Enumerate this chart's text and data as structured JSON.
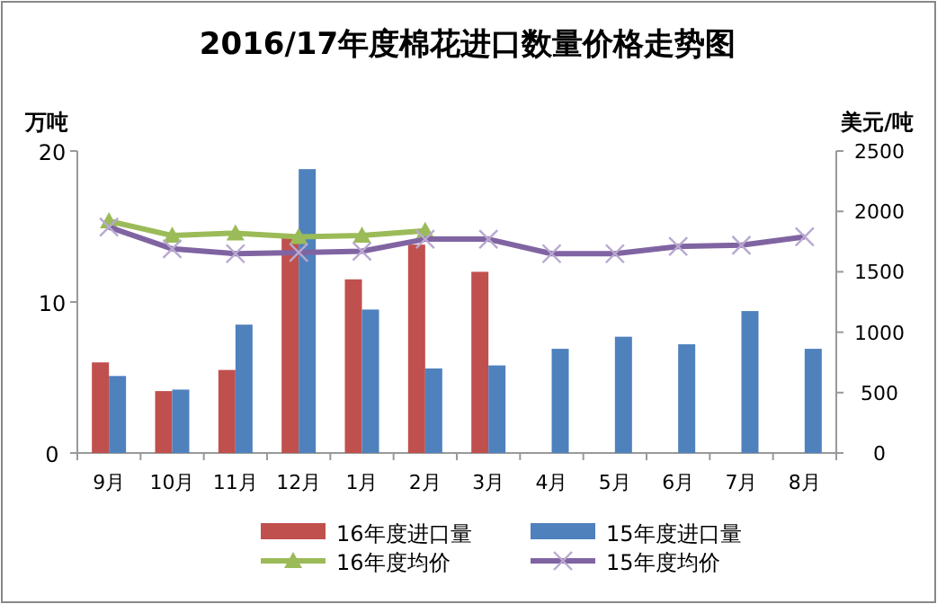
{
  "chart_data": {
    "type": "bar",
    "title": "2016/17年度棉花进口数量价格走势图",
    "ylabel": "万吨",
    "y2label": "美元/吨",
    "categories": [
      "9月",
      "10月",
      "11月",
      "12月",
      "1月",
      "2月",
      "3月",
      "4月",
      "5月",
      "6月",
      "7月",
      "8月"
    ],
    "ylim": [
      0,
      20
    ],
    "yticks": [
      0,
      10,
      20
    ],
    "y2lim": [
      0,
      2500
    ],
    "y2ticks": [
      0,
      500,
      1000,
      1500,
      2000,
      2500
    ],
    "legend": "bottom",
    "grid": false,
    "series": [
      {
        "name": "16年度进口量",
        "color": "#c0504d",
        "values": [
          6.0,
          4.1,
          5.5,
          14.3,
          11.5,
          13.8,
          12.0,
          null,
          null,
          null,
          null,
          null
        ]
      },
      {
        "name": "15年度进口量",
        "color": "#4f81bd",
        "values": [
          5.1,
          4.2,
          8.5,
          18.8,
          9.5,
          5.6,
          5.8,
          6.9,
          7.7,
          7.2,
          9.4,
          6.9
        ]
      },
      {
        "name": "16年度均价",
        "type": "line",
        "axis": "y2",
        "marker": "triangle",
        "color": "#9bbb59",
        "values": [
          1920,
          1800,
          1820,
          1790,
          1800,
          1840,
          null,
          null,
          null,
          null,
          null,
          null
        ]
      },
      {
        "name": "15年度均价",
        "type": "line",
        "axis": "y2",
        "marker": "cross",
        "color": "#8064a2",
        "values": [
          1870,
          1690,
          1650,
          1660,
          1670,
          1770,
          1770,
          1650,
          1650,
          1710,
          1720,
          1790
        ]
      }
    ]
  }
}
